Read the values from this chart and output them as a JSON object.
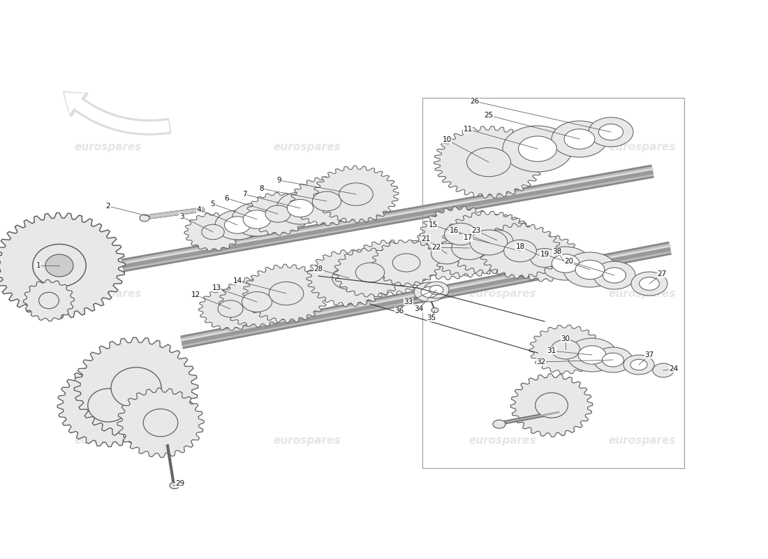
{
  "bg_color": "#ffffff",
  "line_color": "#333333",
  "gear_edge": "#555555",
  "gear_fill": "#e8e8e8",
  "gear_fill_dark": "#cccccc",
  "shaft_color": "#666666",
  "wm_color": "#cccccc",
  "wm_text": "eurospares",
  "arrow_color": "#dddddd",
  "arrow_edge": "#333333",
  "label_color": "#111111",
  "label_fontsize": 7.5,
  "lw_gear": 0.7,
  "lw_shaft": 2.0,
  "lw_leader": 0.5
}
